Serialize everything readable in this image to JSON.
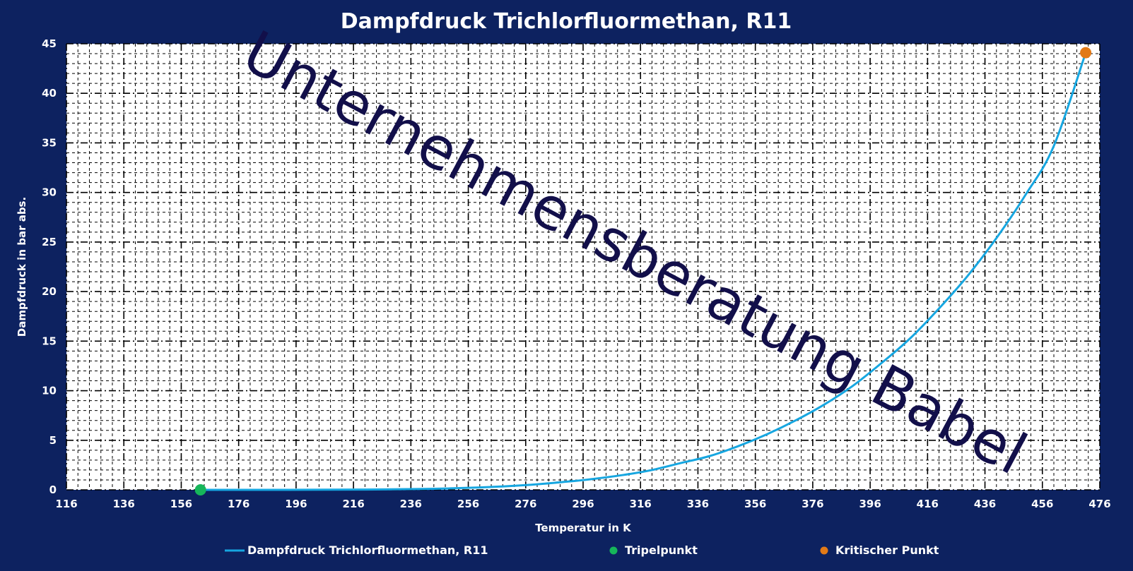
{
  "colors": {
    "background": "#0d2260",
    "plot_background": "#ffffff",
    "grid_major": "#000000",
    "grid_minor": "#000000",
    "series_line": "#16a6e0",
    "triple_point": "#16b65a",
    "critical_point": "#e27a17",
    "watermark": "#120f4a"
  },
  "watermark": "Unternehmensberatung Babel",
  "chart_data": {
    "type": "line",
    "title": "Dampfdruck Trichlorfluormethan, R11",
    "xlabel": "Temperatur in K",
    "ylabel": "Dampfdruck in bar abs.",
    "xlim": [
      116,
      476
    ],
    "ylim": [
      0,
      45
    ],
    "x_ticks": [
      116,
      136,
      156,
      176,
      196,
      216,
      236,
      256,
      276,
      296,
      316,
      336,
      356,
      376,
      396,
      416,
      436,
      456,
      476
    ],
    "y_ticks": [
      0,
      5,
      10,
      15,
      20,
      25,
      30,
      35,
      40,
      45
    ],
    "grid": true,
    "legend_position": "bottom",
    "series": [
      {
        "name": "Dampfdruck Trichlorfluormethan, R11",
        "kind": "line",
        "color": "#16a6e0",
        "x": [
          162.7,
          180,
          200,
          220,
          240,
          250,
          260,
          270,
          280,
          290,
          296.9,
          310,
          320,
          330,
          340,
          350,
          360,
          370,
          380,
          390,
          400,
          410,
          420,
          430,
          440,
          450,
          460,
          471.1
        ],
        "y": [
          0.0001,
          0.0009,
          0.006,
          0.027,
          0.085,
          0.15,
          0.24,
          0.37,
          0.56,
          0.82,
          1.01,
          1.5,
          2.0,
          2.7,
          3.4,
          4.4,
          5.6,
          7.0,
          8.6,
          10.5,
          12.8,
          15.3,
          18.3,
          21.6,
          25.4,
          29.7,
          34.7,
          44.1
        ]
      },
      {
        "name": "Tripelpunkt",
        "kind": "point",
        "color": "#16b65a",
        "x": [
          162.7
        ],
        "y": [
          0.0001
        ]
      },
      {
        "name": "Kritischer Punkt",
        "kind": "point",
        "color": "#e27a17",
        "x": [
          471.1
        ],
        "y": [
          44.1
        ]
      }
    ]
  }
}
